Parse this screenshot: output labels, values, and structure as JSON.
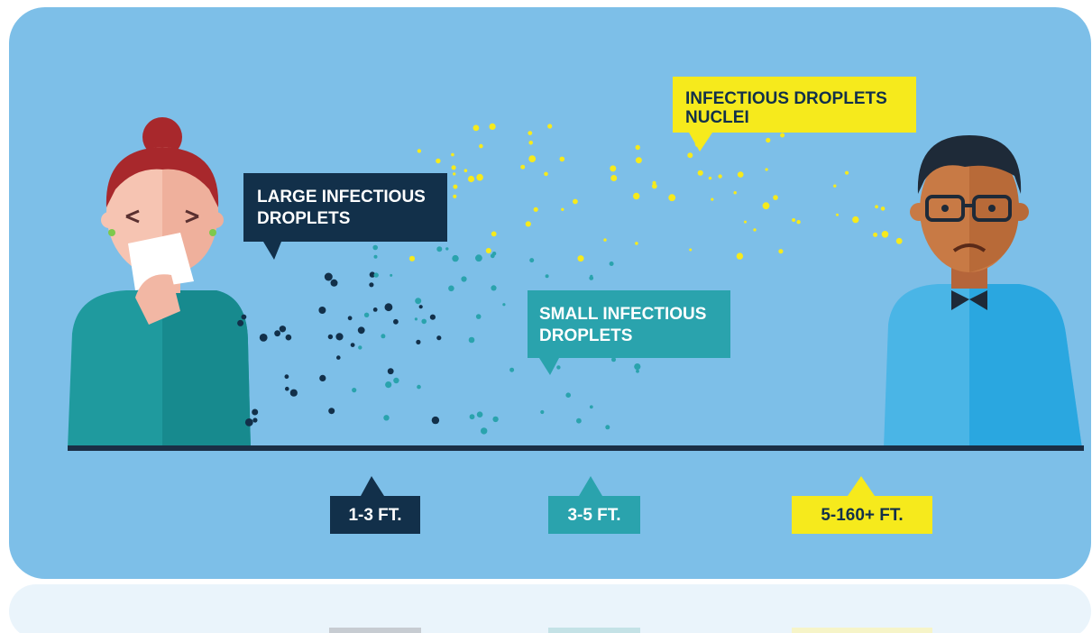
{
  "callouts": [
    {
      "lines": [
        "LARGE INFECTIOUS",
        "DROPLETS"
      ]
    },
    {
      "lines": [
        "SMALL INFECTIOUS",
        "DROPLETS"
      ]
    },
    {
      "lines": [
        "INFECTIOUS DROPLETS",
        "NUCLEI"
      ]
    }
  ],
  "distances": [
    "1-3 FT.",
    "3-5 FT.",
    "5-160+ FT."
  ]
}
